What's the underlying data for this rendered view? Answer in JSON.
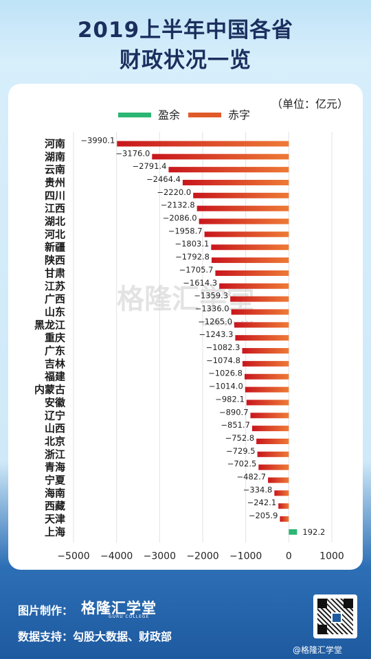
{
  "header": {
    "title_line1": "2019上半年中国各省",
    "title_line2": "财政状况一览"
  },
  "chart_data": {
    "type": "bar",
    "orientation": "horizontal",
    "unit": "（单位：亿元）",
    "legend": [
      {
        "name": "盈余",
        "color": "#2bb673"
      },
      {
        "name": "赤字",
        "color": "#e05a2a"
      }
    ],
    "categories": [
      "河南",
      "湖南",
      "云南",
      "贵州",
      "四川",
      "江西",
      "湖北",
      "河北",
      "新疆",
      "陕西",
      "甘肃",
      "江苏",
      "广西",
      "山东",
      "黑龙江",
      "重庆",
      "广东",
      "吉林",
      "福建",
      "内蒙古",
      "安徽",
      "辽宁",
      "山西",
      "北京",
      "浙江",
      "青海",
      "宁夏",
      "海南",
      "西藏",
      "天津",
      "上海"
    ],
    "values": [
      -3990.1,
      -3176.0,
      -2791.4,
      -2464.4,
      -2220.0,
      -2132.8,
      -2086.0,
      -1958.7,
      -1803.1,
      -1792.8,
      -1705.7,
      -1614.3,
      -1359.3,
      -1336.0,
      -1265.0,
      -1243.3,
      -1082.3,
      -1074.8,
      -1026.8,
      -1014.0,
      -982.1,
      -890.7,
      -851.7,
      -752.8,
      -729.5,
      -702.5,
      -482.7,
      -334.8,
      -242.1,
      -205.9,
      192.2
    ],
    "labels": [
      "−3990.1",
      "−3176.0",
      "−2791.4",
      "−2464.4",
      "−2220.0",
      "−2132.8",
      "−2086.0",
      "−1958.7",
      "−1803.1",
      "−1792.8",
      "−1705.7",
      "−1614.3",
      "−1359.3",
      "−1336.0",
      "−1265.0",
      "−1243.3",
      "−1082.3",
      "−1074.8",
      "−1026.8",
      "−1014.0",
      "−982.1",
      "−890.7",
      "−851.7",
      "−752.8",
      "−729.5",
      "−702.5",
      "−482.7",
      "−334.8",
      "−242.1",
      "−205.9",
      "192.2"
    ],
    "xlim": [
      -5000,
      1000
    ],
    "xticks": [
      -5000,
      -4000,
      -3000,
      -2000,
      -1000,
      0,
      1000
    ],
    "xtick_labels": [
      "−5000",
      "−4000",
      "−3000",
      "−2000",
      "−1000",
      "0",
      "1000"
    ],
    "grid": true,
    "legend_position": "top"
  },
  "watermark": {
    "text": "格隆汇学堂",
    "sub": "GURU COLLEGE"
  },
  "footer": {
    "credit_label": "图片制作：",
    "brand": "格隆汇学堂",
    "brand_sub": "GURU COLLEGE",
    "source": "数据支持：勾股大数据、财政部",
    "weibo": "@格隆汇学堂"
  },
  "colors": {
    "surplus": "#2bb673",
    "deficit_dark": "#c8161d",
    "deficit_light": "#ee7a36",
    "title": "#1b2f5e"
  }
}
